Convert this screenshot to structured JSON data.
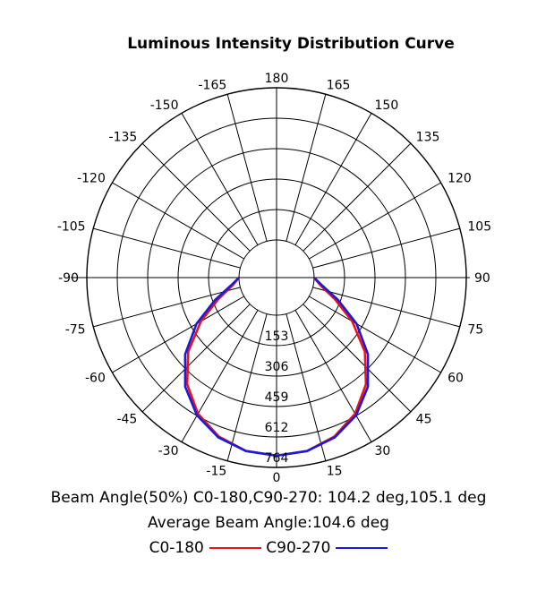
{
  "chart_data": {
    "type": "polar",
    "title": "Luminous Intensity Distribution Curve",
    "angle_ticks": [
      "180",
      "165",
      "150",
      "135",
      "120",
      "105",
      "90",
      "75",
      "60",
      "45",
      "30",
      "15",
      "0",
      "-15",
      "-30",
      "-45",
      "-60",
      "-75",
      "-90",
      "-105",
      "-120",
      "-135",
      "-150",
      "-165"
    ],
    "radial_ticks": [
      "153",
      "306",
      "459",
      "612",
      "764"
    ],
    "radial_max": 764,
    "grid": true,
    "series": [
      {
        "name": "C0-180",
        "color": "#e8141b",
        "angles": [
          -90,
          -80,
          -70,
          -60,
          -50,
          -40,
          -30,
          -20,
          -10,
          0,
          10,
          20,
          30,
          40,
          50,
          60,
          70,
          80,
          90
        ],
        "values": [
          0,
          35,
          120,
          250,
          390,
          510,
          600,
          660,
          695,
          705,
          695,
          660,
          600,
          510,
          390,
          250,
          120,
          35,
          0
        ]
      },
      {
        "name": "C90-270",
        "color": "#1c1ad6",
        "angles": [
          -90,
          -80,
          -70,
          -60,
          -50,
          -40,
          -30,
          -20,
          -10,
          0,
          10,
          20,
          30,
          40,
          50,
          60,
          70,
          80,
          90
        ],
        "values": [
          0,
          45,
          140,
          275,
          410,
          525,
          610,
          665,
          695,
          705,
          695,
          665,
          610,
          525,
          410,
          275,
          140,
          45,
          0
        ]
      }
    ]
  },
  "info": {
    "beam_angle_line": "Beam Angle(50%) C0-180,C90-270: 104.2 deg,105.1 deg",
    "average_line": "Average Beam Angle:104.6 deg"
  },
  "legend": {
    "c0_label": "C0-180",
    "c0_color": "#e8141b",
    "c90_label": "C90-270",
    "c90_color": "#1c1ad6"
  }
}
